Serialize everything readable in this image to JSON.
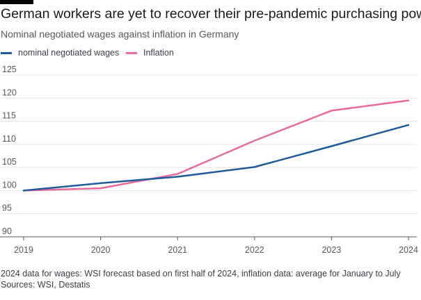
{
  "header": {
    "title": "German workers are yet to recover their pre-pandemic purchasing power",
    "subtitle": "Nominal negotiated wages against inflation in Germany"
  },
  "footer": {
    "note": "2024 data for wages: WSI forecast based on first half of 2024, inflation data: average for January to July",
    "source": "Sources: WSI, Destatis"
  },
  "colors": {
    "wages": "#1f5b9c",
    "inflation": "#e8699a",
    "grid": "#e3e3e3",
    "baseline": "#55575d"
  },
  "chart_data": {
    "type": "line",
    "x": [
      2019,
      2020,
      2021,
      2022,
      2023,
      2024
    ],
    "xtick_labels": [
      "2019",
      "2020",
      "2021",
      "2022",
      "2023",
      "2024"
    ],
    "ylim": [
      90,
      125
    ],
    "yticks": [
      90,
      95,
      100,
      105,
      110,
      115,
      120,
      125
    ],
    "ytick_labels": [
      "90",
      "95",
      "100",
      "105",
      "110",
      "115",
      "120",
      "125"
    ],
    "grid": true,
    "legend_position": "top-left",
    "series": [
      {
        "name": "nominal negotiated wages",
        "color": "#1f5b9c",
        "values": [
          100,
          101.6,
          103,
          105.1,
          109.6,
          114.2
        ]
      },
      {
        "name": "Inflation",
        "color": "#e8699a",
        "values": [
          100,
          100.5,
          103.6,
          110.8,
          117.3,
          119.5
        ]
      }
    ]
  }
}
